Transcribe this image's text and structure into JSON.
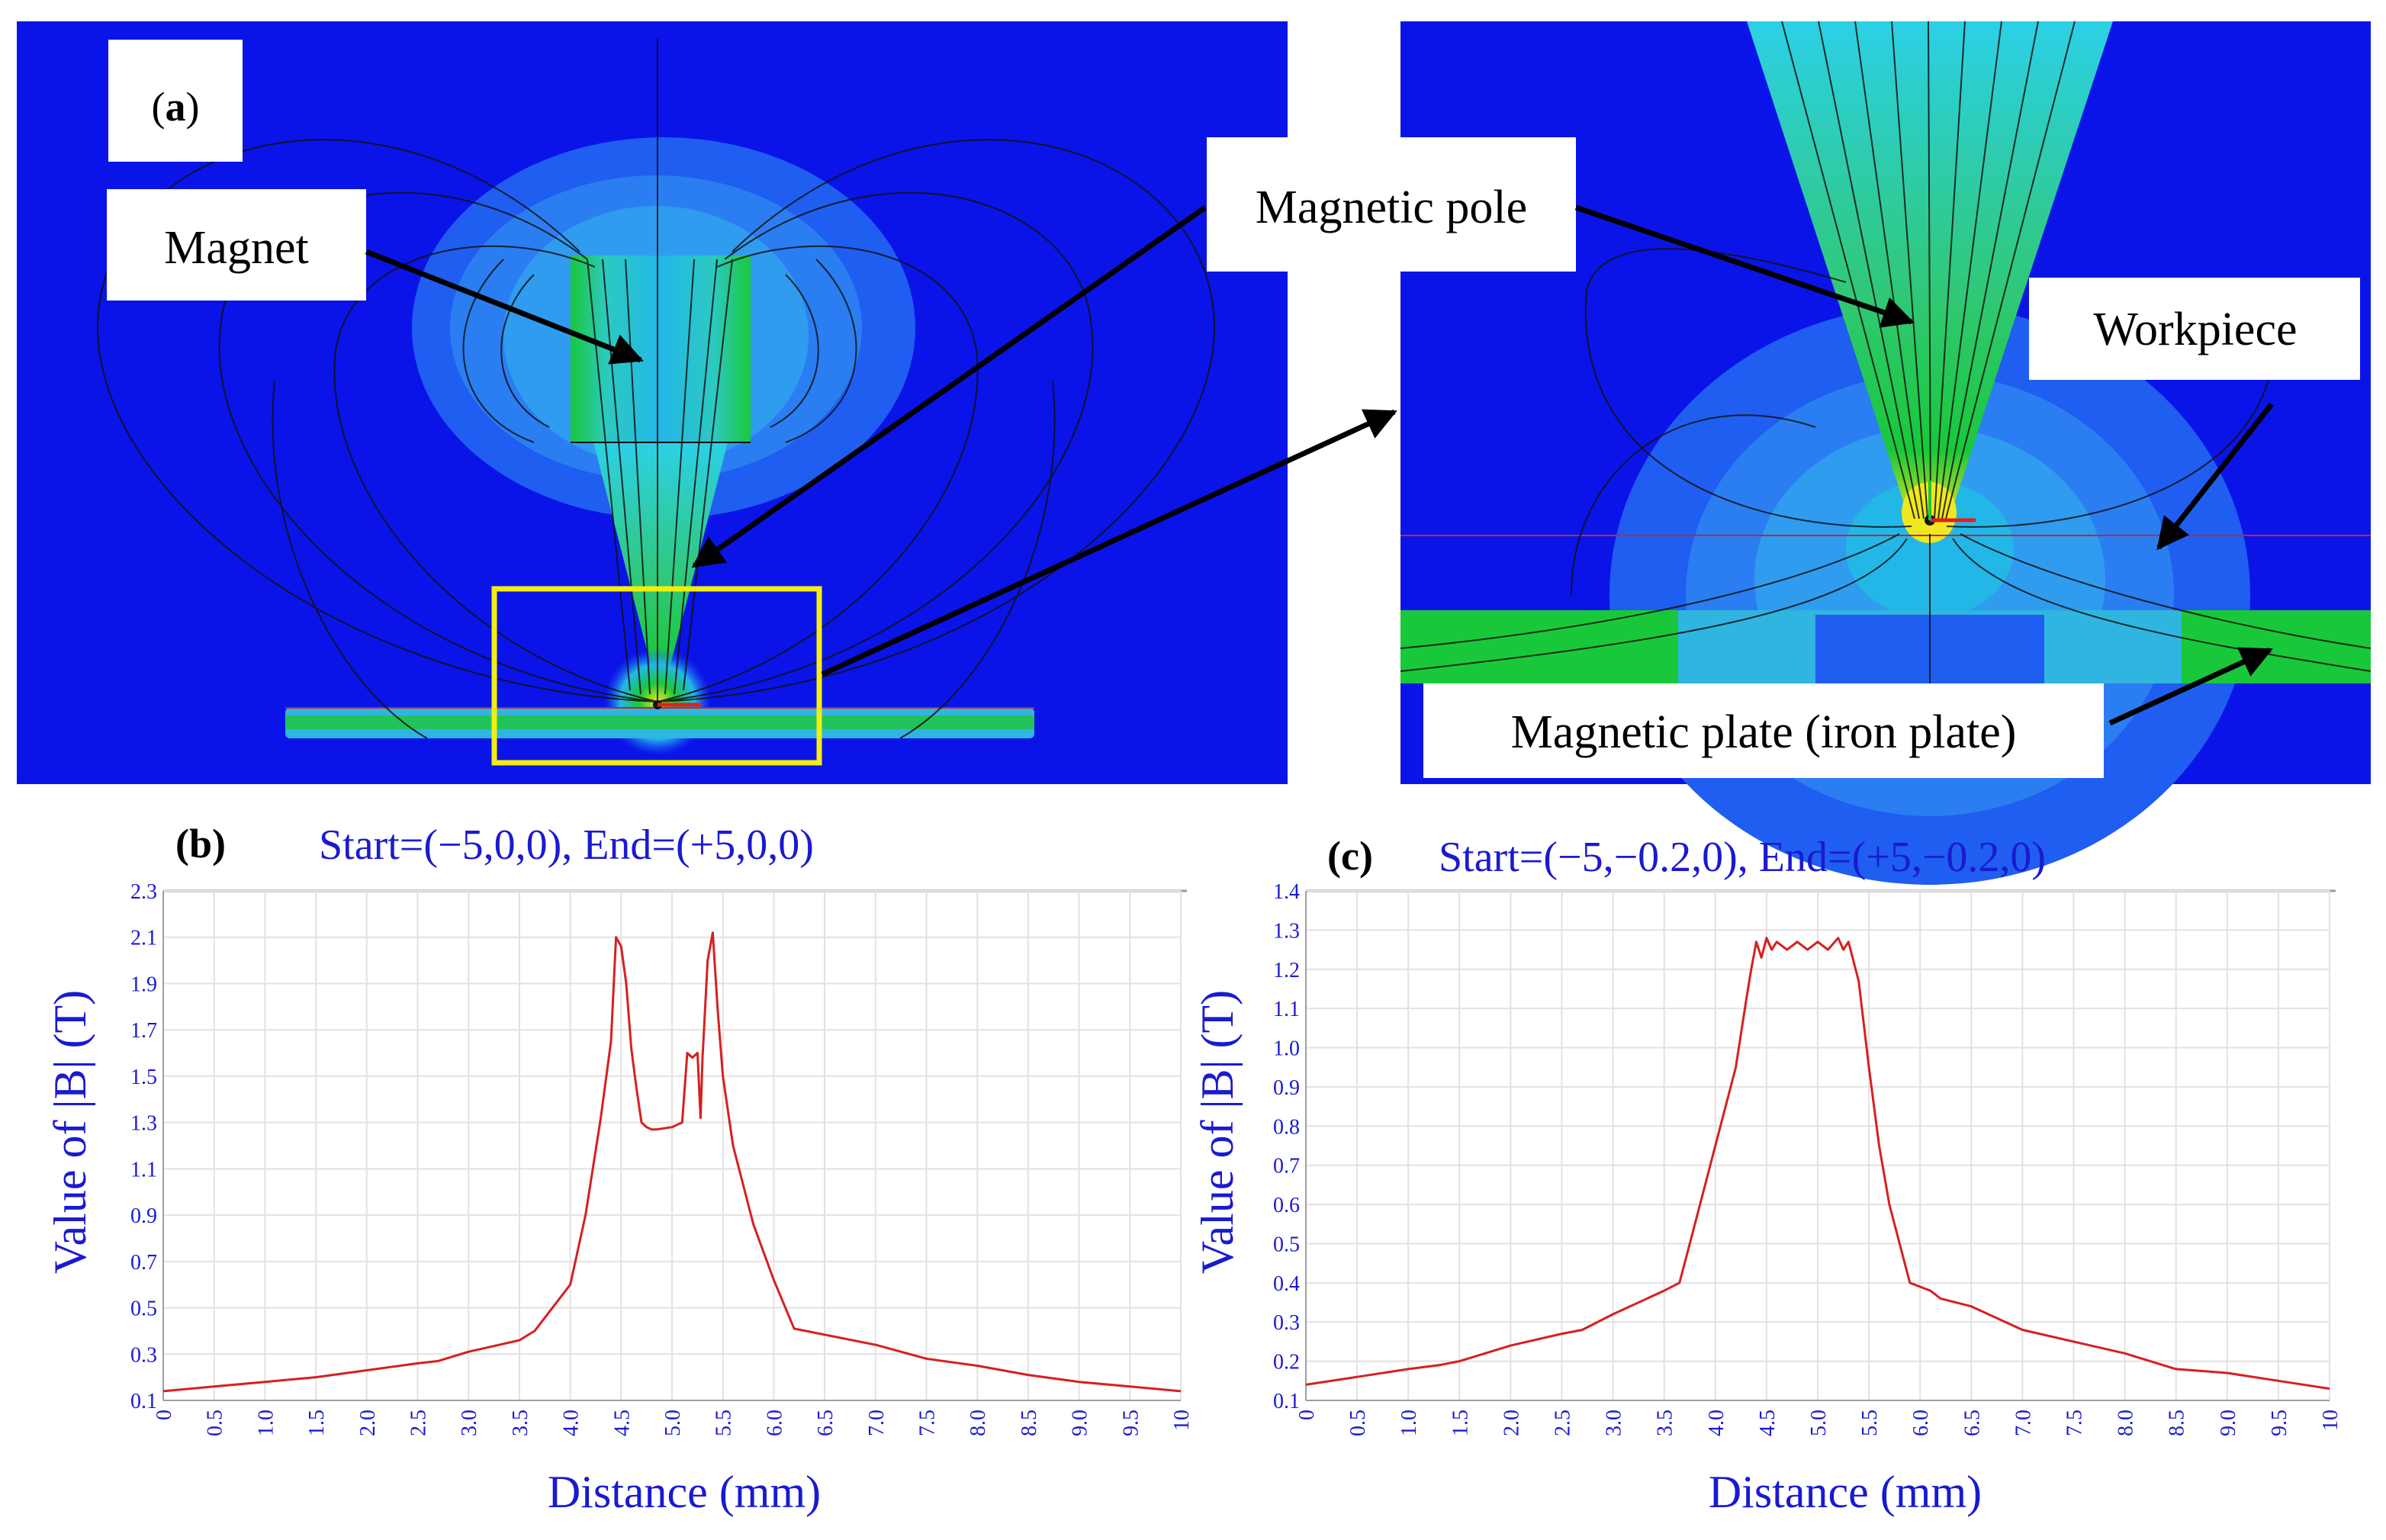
{
  "panel_a": {
    "label_prefix": "(",
    "label_letter": "a",
    "label_suffix": ")",
    "callouts": {
      "magnet": "Magnet",
      "magnetic_pole": "Magnetic pole",
      "workpiece": "Workpiece",
      "magnetic_plate": "Magnetic plate (iron plate)"
    },
    "colors": {
      "background": "#0a14e8",
      "field_low": "#1f5ef0",
      "field_mid": "#23b7e8",
      "field_high": "#19c83a",
      "field_peak": "#f0e81e",
      "zoom_box": "#f2ee10"
    }
  },
  "chart_data": [
    {
      "type": "line",
      "panel_label": "(b)",
      "title": "Start=(−5,0,0), End=(+5,0,0)",
      "xlabel": "Distance (mm)",
      "ylabel": "Value of |B| (T)",
      "xlim": [
        0,
        10
      ],
      "ylim": [
        0.1,
        2.3
      ],
      "xticks": [
        "0",
        "0.5",
        "1.0",
        "1.5",
        "2.0",
        "2.5",
        "3.0",
        "3.5",
        "4.0",
        "4.5",
        "5.0",
        "5.5",
        "6.0",
        "6.5",
        "7.0",
        "7.5",
        "8.0",
        "8.5",
        "9.0",
        "9.5",
        "10"
      ],
      "yticks": [
        "0.1",
        "0.3",
        "0.5",
        "0.7",
        "0.9",
        "1.1",
        "1.3",
        "1.5",
        "1.7",
        "1.9",
        "2.1",
        "2.3"
      ],
      "grid": true,
      "line_color": "#d62020",
      "x": [
        0,
        0.5,
        1.0,
        1.5,
        2.0,
        2.5,
        2.7,
        3.0,
        3.5,
        3.65,
        4.0,
        4.15,
        4.3,
        4.4,
        4.45,
        4.5,
        4.55,
        4.6,
        4.65,
        4.7,
        4.75,
        4.8,
        4.85,
        5.0,
        5.1,
        5.15,
        5.2,
        5.25,
        5.28,
        5.3,
        5.35,
        5.4,
        5.45,
        5.5,
        5.6,
        5.8,
        6.0,
        6.2,
        7.0,
        7.5,
        8.0,
        8.5,
        9.0,
        9.5,
        10.0
      ],
      "y": [
        0.14,
        0.16,
        0.18,
        0.2,
        0.23,
        0.26,
        0.27,
        0.31,
        0.36,
        0.4,
        0.6,
        0.9,
        1.32,
        1.65,
        2.1,
        2.06,
        1.9,
        1.62,
        1.45,
        1.3,
        1.28,
        1.27,
        1.27,
        1.28,
        1.3,
        1.6,
        1.58,
        1.6,
        1.32,
        1.58,
        2.0,
        2.12,
        1.78,
        1.5,
        1.2,
        0.86,
        0.62,
        0.41,
        0.34,
        0.28,
        0.25,
        0.21,
        0.18,
        0.16,
        0.14
      ]
    },
    {
      "type": "line",
      "panel_label": "(c)",
      "title": "Start=(−5,−0.2,0), End=(+5,−0.2,0)",
      "xlabel": "Distance (mm)",
      "ylabel": "Value of |B| (T)",
      "xlim": [
        0,
        10
      ],
      "ylim": [
        0.1,
        1.4
      ],
      "xticks": [
        "0",
        "0.5",
        "1.0",
        "1.5",
        "2.0",
        "2.5",
        "3.0",
        "3.5",
        "4.0",
        "4.5",
        "5.0",
        "5.5",
        "6.0",
        "6.5",
        "7.0",
        "7.5",
        "8.0",
        "8.5",
        "9.0",
        "9.5",
        "10"
      ],
      "yticks": [
        "0.1",
        "0.2",
        "0.3",
        "0.4",
        "0.5",
        "0.6",
        "0.7",
        "0.8",
        "0.9",
        "1.0",
        "1.1",
        "1.2",
        "1.3",
        "1.4"
      ],
      "grid": true,
      "line_color": "#d62020",
      "x": [
        0,
        0.5,
        1.0,
        1.3,
        1.5,
        2.0,
        2.5,
        2.7,
        3.0,
        3.5,
        3.65,
        3.8,
        4.0,
        4.2,
        4.3,
        4.35,
        4.4,
        4.45,
        4.5,
        4.55,
        4.6,
        4.7,
        4.8,
        4.9,
        5.0,
        5.1,
        5.2,
        5.25,
        5.3,
        5.35,
        5.4,
        5.5,
        5.6,
        5.7,
        5.9,
        6.1,
        6.2,
        6.5,
        7.0,
        7.5,
        8.0,
        8.5,
        9.0,
        9.5,
        10.0
      ],
      "y": [
        0.14,
        0.16,
        0.18,
        0.19,
        0.2,
        0.24,
        0.27,
        0.28,
        0.32,
        0.38,
        0.4,
        0.55,
        0.75,
        0.95,
        1.12,
        1.2,
        1.27,
        1.23,
        1.28,
        1.25,
        1.27,
        1.25,
        1.27,
        1.25,
        1.27,
        1.25,
        1.28,
        1.25,
        1.27,
        1.22,
        1.17,
        0.95,
        0.75,
        0.6,
        0.4,
        0.38,
        0.36,
        0.34,
        0.28,
        0.25,
        0.22,
        0.18,
        0.17,
        0.15,
        0.13
      ]
    }
  ]
}
